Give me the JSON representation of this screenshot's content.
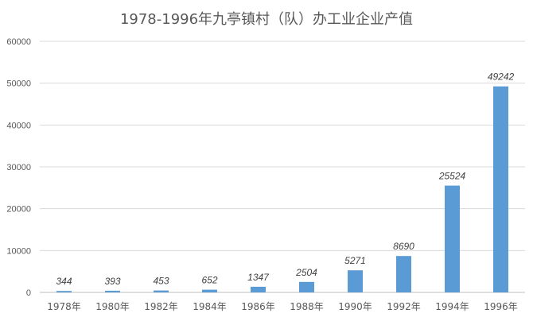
{
  "chart_data": {
    "type": "bar",
    "title": "1978-1996年九亭镇村（队）办工业企业产值",
    "categories": [
      "1978年",
      "1980年",
      "1982年",
      "1984年",
      "1986年",
      "1988年",
      "1990年",
      "1992年",
      "1994年",
      "1996年"
    ],
    "values": [
      344,
      393,
      453,
      652,
      1347,
      2504,
      5271,
      8690,
      25524,
      49242
    ],
    "data_labels": [
      "344",
      "393",
      "453",
      "652",
      "1347",
      "2504",
      "5271",
      "8690",
      "25524",
      "49242"
    ],
    "y_ticks": [
      0,
      10000,
      20000,
      30000,
      40000,
      50000,
      60000
    ],
    "y_tick_labels": [
      "0",
      "10000",
      "20000",
      "30000",
      "40000",
      "50000",
      "60000"
    ],
    "ylim": [
      0,
      60000
    ],
    "grid": true,
    "bar_color": "#5b9bd5",
    "legend": "none"
  }
}
